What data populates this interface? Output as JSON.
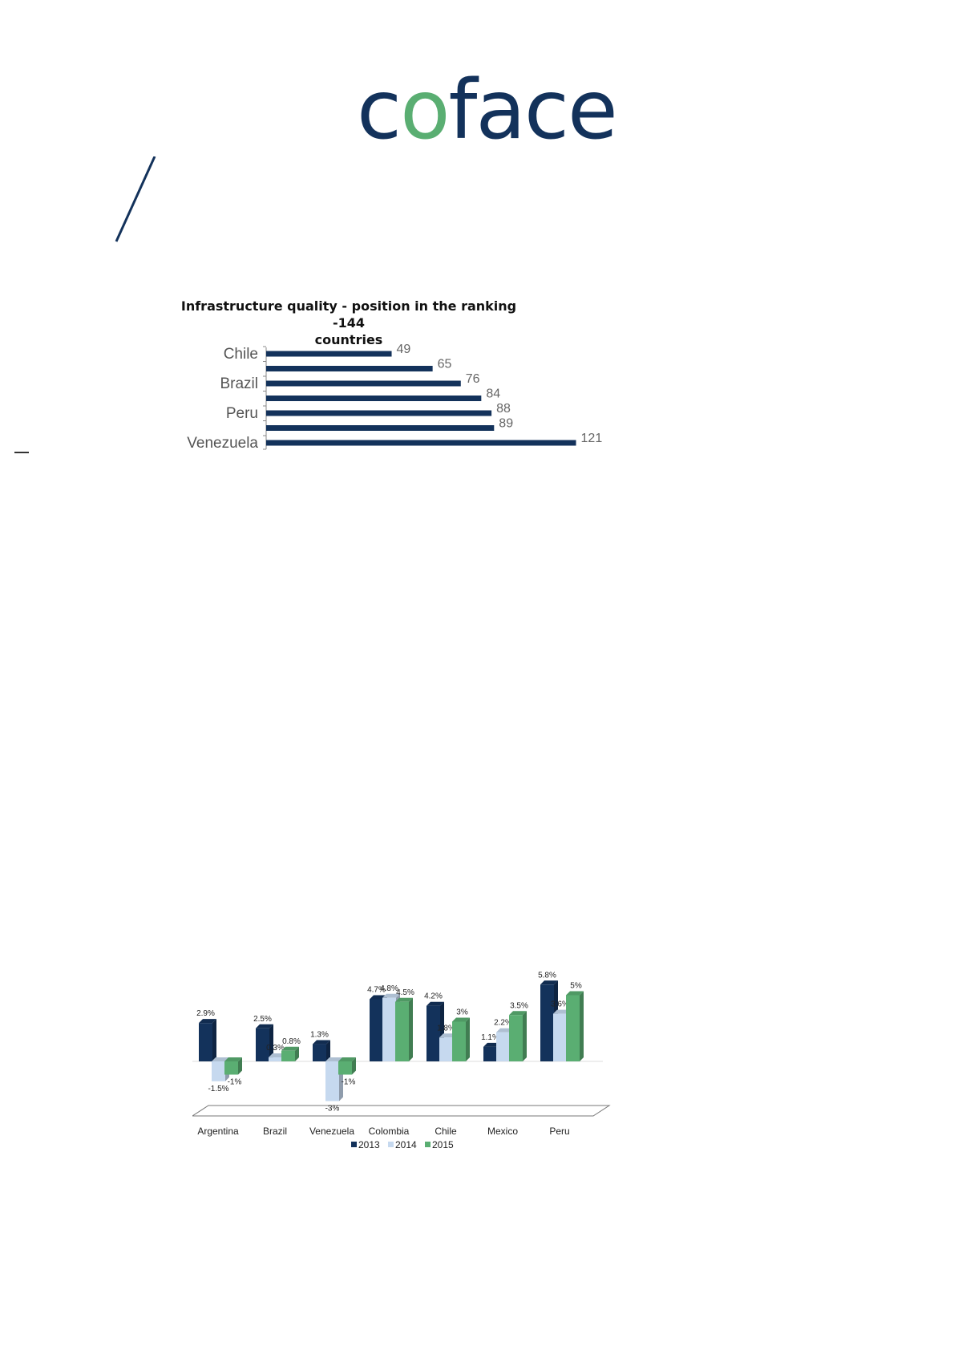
{
  "logo": {
    "c1": "c",
    "o": "o",
    "rest": "face",
    "brand_color": "#13325b",
    "accent_color": "#5aae72"
  },
  "chart_data": [
    {
      "type": "bar",
      "orientation": "horizontal",
      "title": "Infrastructure quality - position in the ranking -144 countries",
      "title_line1": "Infrastructure quality - position in the ranking -144",
      "title_line2": "countries",
      "categories": [
        "Chile",
        "",
        "Brazil",
        "",
        "Peru",
        "",
        "Venezuela"
      ],
      "values": [
        49,
        65,
        76,
        84,
        88,
        89,
        121
      ],
      "xlim": [
        0,
        144
      ],
      "color": "#13325b",
      "grid": false
    },
    {
      "type": "bar",
      "categories": [
        "Argentina",
        "Brazil",
        "Venezuela",
        "Colombia",
        "Chile",
        "Mexico",
        "Peru"
      ],
      "series": [
        {
          "name": "2013",
          "color": "#13325b",
          "values": [
            2.9,
            2.5,
            1.3,
            4.7,
            4.2,
            1.1,
            5.8
          ],
          "labels": [
            "2.9%",
            "2.5%",
            "1.3%",
            "4.7%",
            "4.2%",
            "1.1%",
            "5.8%"
          ]
        },
        {
          "name": "2014",
          "color": "#c6d9ef",
          "values": [
            -1.5,
            0.3,
            -3,
            4.8,
            1.8,
            2.2,
            3.6
          ],
          "labels": [
            "-1.5%",
            "0.3%",
            "-3%",
            "4.8%",
            "1.8%",
            "2.2%",
            "3.6%"
          ]
        },
        {
          "name": "2015",
          "color": "#5aae72",
          "values": [
            -1,
            0.8,
            -1,
            4.5,
            3,
            3.5,
            5
          ],
          "labels": [
            "-1%",
            "0.8%",
            "-1%",
            "4.5%",
            "3%",
            "3.5%",
            "5%"
          ]
        }
      ],
      "ylim": [
        -3.5,
        6.5
      ],
      "legend": "bottom",
      "grid": false
    }
  ]
}
